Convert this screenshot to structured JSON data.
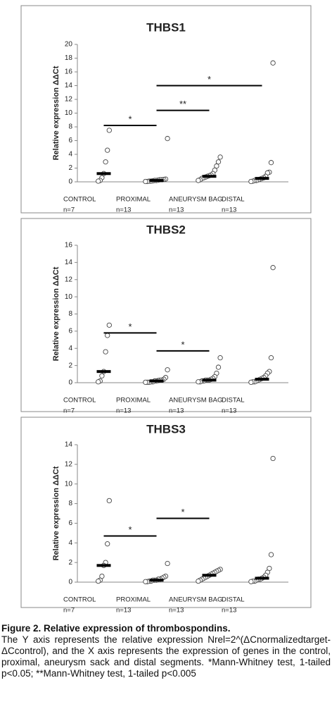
{
  "chart_data": [
    {
      "type": "dot",
      "title": "THBS1",
      "ylabel": "Relative expression ΔΔCt",
      "categories": [
        "CONTROL",
        "PROXIMAL",
        "ANEURYSM BAG",
        "DISTAL"
      ],
      "n_labels": [
        "n=7",
        "n=13",
        "n=13",
        "n=13"
      ],
      "points": [
        [
          7.5,
          4.6,
          2.9,
          1.2,
          0.6,
          0.2,
          0.1
        ],
        [
          6.3,
          0.4,
          0.35,
          0.3,
          0.3,
          0.25,
          0.2,
          0.2,
          0.15,
          0.1,
          0.1,
          0.05,
          0.05
        ],
        [
          3.6,
          2.9,
          2.3,
          1.7,
          1.2,
          1.0,
          0.9,
          0.8,
          0.7,
          0.6,
          0.5,
          0.3,
          0.2
        ],
        [
          17.3,
          2.8,
          1.4,
          1.3,
          0.8,
          0.6,
          0.5,
          0.4,
          0.3,
          0.2,
          0.2,
          0.1,
          0.05
        ]
      ],
      "medians": [
        1.2,
        0.2,
        0.8,
        0.5
      ],
      "ylim": [
        0,
        20
      ],
      "yticks": [
        0,
        2,
        4,
        6,
        8,
        10,
        12,
        14,
        16,
        18,
        20
      ],
      "significance": [
        {
          "span": [
            0,
            1
          ],
          "y": 8.2,
          "label": "*"
        },
        {
          "span": [
            1,
            2
          ],
          "y": 10.4,
          "label": "**"
        },
        {
          "span": [
            1,
            3
          ],
          "y": 14,
          "label": "*"
        }
      ]
    },
    {
      "type": "dot",
      "title": "THBS2",
      "ylabel": "Relative expression ΔΔCt",
      "categories": [
        "CONTROL",
        "PROXIMAL",
        "ANEURYSM BAG",
        "DISTAL"
      ],
      "n_labels": [
        "n=7",
        "n=13",
        "n=13",
        "n=13"
      ],
      "points": [
        [
          6.7,
          5.5,
          3.6,
          1.3,
          0.8,
          0.2,
          0.1
        ],
        [
          1.5,
          0.6,
          0.4,
          0.3,
          0.3,
          0.25,
          0.2,
          0.2,
          0.1,
          0.1,
          0.05,
          0.05,
          0.05
        ],
        [
          2.9,
          1.8,
          1.1,
          0.7,
          0.5,
          0.4,
          0.3,
          0.3,
          0.3,
          0.2,
          0.2,
          0.1,
          0.1
        ],
        [
          13.4,
          2.9,
          1.3,
          1.1,
          0.8,
          0.6,
          0.5,
          0.4,
          0.3,
          0.2,
          0.1,
          0.1,
          0.05
        ]
      ],
      "medians": [
        1.3,
        0.2,
        0.3,
        0.4
      ],
      "ylim": [
        0,
        16
      ],
      "yticks": [
        0,
        2,
        4,
        6,
        8,
        10,
        12,
        14,
        16
      ],
      "significance": [
        {
          "span": [
            0,
            1
          ],
          "y": 5.8,
          "label": "*"
        },
        {
          "span": [
            1,
            2
          ],
          "y": 3.7,
          "label": "*"
        }
      ]
    },
    {
      "type": "dot",
      "title": "THBS3",
      "ylabel": "Relative expression ΔΔCt",
      "categories": [
        "CONTROL",
        "PROXIMAL",
        "ANEURYSM BAG",
        "DISTAL"
      ],
      "n_labels": [
        "n=7",
        "n=13",
        "n=13",
        "n=13"
      ],
      "points": [
        [
          8.3,
          3.9,
          2.0,
          1.7,
          0.6,
          0.2,
          0.1
        ],
        [
          1.9,
          0.6,
          0.5,
          0.4,
          0.3,
          0.3,
          0.2,
          0.2,
          0.2,
          0.1,
          0.1,
          0.05,
          0.05
        ],
        [
          1.3,
          1.2,
          1.1,
          1.0,
          0.9,
          0.8,
          0.7,
          0.6,
          0.5,
          0.4,
          0.3,
          0.2,
          0.1
        ],
        [
          12.6,
          2.8,
          1.4,
          1.0,
          0.7,
          0.5,
          0.4,
          0.3,
          0.3,
          0.2,
          0.1,
          0.1,
          0.05
        ]
      ],
      "medians": [
        1.7,
        0.2,
        0.7,
        0.4
      ],
      "ylim": [
        0,
        14
      ],
      "yticks": [
        0,
        2,
        4,
        6,
        8,
        10,
        12,
        14
      ],
      "significance": [
        {
          "span": [
            0,
            1
          ],
          "y": 4.7,
          "label": "*"
        },
        {
          "span": [
            1,
            2
          ],
          "y": 6.5,
          "label": "*"
        }
      ]
    }
  ],
  "caption": {
    "title": "Figure 2. Relative expression of thrombospondins.",
    "text": "The Y axis represents the relative expression Nrel=2^(ΔCnormalizedtarget-ΔCcontrol), and the X axis represents the expression of genes in the control, proximal, aneurysm sack and distal segments. *Mann-Whitney test, 1-tailed p<0.05; **Mann-Whitney test, 1-tailed p<0.005"
  }
}
